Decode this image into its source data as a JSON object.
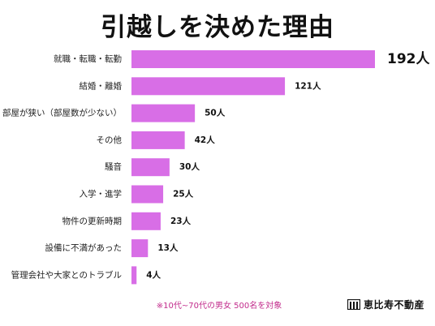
{
  "title": "引越しを決めた理由",
  "footnote": "※10代~70代の男女 500名を対象",
  "logo_text": "恵比寿不動産",
  "colors": {
    "bar": "#d86ee6",
    "footnote": "#c22c8c"
  },
  "chart_data": {
    "type": "bar",
    "orientation": "horizontal",
    "categories": [
      "就職・転職・転勤",
      "結婚・離婚",
      "部屋が狭い（部屋数が少ない）",
      "その他",
      "騒音",
      "入学・進学",
      "物件の更新時期",
      "設備に不満があった",
      "管理会社や大家とのトラブル"
    ],
    "values": [
      192,
      121,
      50,
      42,
      30,
      25,
      23,
      13,
      4
    ],
    "labels": [
      "192人",
      "121人",
      "50人",
      "42人",
      "30人",
      "25人",
      "23人",
      "13人",
      "4人"
    ],
    "title": "引越しを決めた理由",
    "xlim": [
      0,
      192
    ]
  }
}
